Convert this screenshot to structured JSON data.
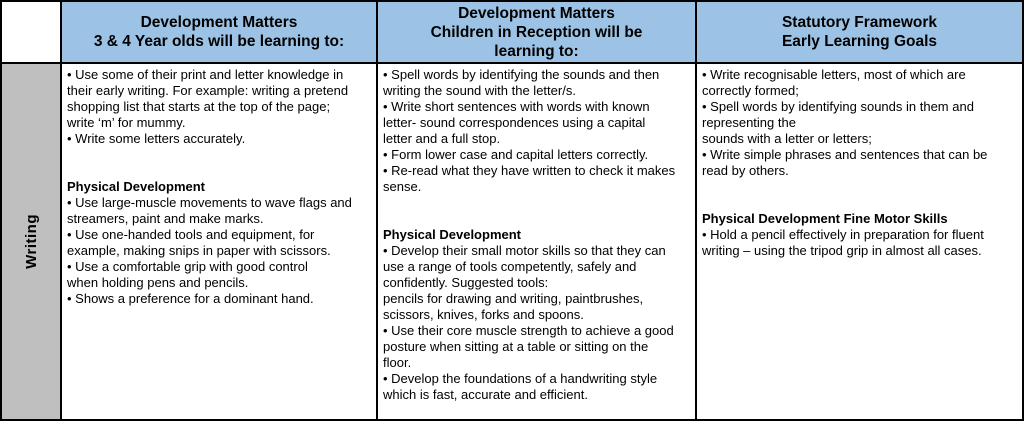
{
  "table": {
    "title_context": "Writing curriculum overview table",
    "header": {
      "col_3_4": "Development Matters\n3 & 4 Year olds will be learning to:",
      "col_reception": "Development Matters\nChildren in Reception will be\nlearning to:",
      "col_elg": "Statutory Framework\nEarly Learning Goals"
    },
    "row_label": "Writing",
    "colors": {
      "header_bg": "#9cc3e5",
      "row_label_bg": "#bfbfbf",
      "border": "#000000",
      "body_bg": "#ffffff"
    },
    "columns": [
      {
        "name": "3-4-year-olds",
        "blocks": [
          {
            "type": "p",
            "text": "• Use some of their print and letter knowledge in\ntheir early writing. For example: writing a pretend\nshopping list that starts at the top of the page;\nwrite ‘m’ for mummy."
          },
          {
            "type": "p",
            "text": "• Write some letters accurately."
          },
          {
            "type": "gap"
          },
          {
            "type": "h",
            "text": "Physical Development"
          },
          {
            "type": "p",
            "text": "• Use large-muscle movements to wave flags and\nstreamers, paint and make marks."
          },
          {
            "type": "p",
            "text": "• Use one-handed tools and equipment, for\nexample, making snips in paper with scissors."
          },
          {
            "type": "p",
            "text": "• Use a comfortable grip with good control\nwhen holding pens and pencils."
          },
          {
            "type": "p",
            "text": "• Shows a preference for a dominant hand."
          }
        ]
      },
      {
        "name": "reception",
        "blocks": [
          {
            "type": "p",
            "text": "• Spell words by identifying the sounds and then\nwriting the sound with the letter/s."
          },
          {
            "type": "p",
            "text": "• Write short sentences with words with known\nletter- sound correspondences using a capital\nletter and a full stop."
          },
          {
            "type": "p",
            "text": "• Form lower case and capital letters correctly."
          },
          {
            "type": "p",
            "text": "• Re-read what they have written to check it makes\nsense."
          },
          {
            "type": "gap"
          },
          {
            "type": "h",
            "text": "Physical Development"
          },
          {
            "type": "p",
            "text": "• Develop their small motor skills so that they can\nuse a range of tools competently, safely and\nconfidently. Suggested tools:\npencils for drawing and writing, paintbrushes,\nscissors, knives, forks and spoons."
          },
          {
            "type": "p",
            "text": "• Use their core muscle strength to achieve a good\nposture when sitting at a table or sitting on the\nfloor."
          },
          {
            "type": "p",
            "text": "• Develop the foundations of a handwriting style\nwhich is fast, accurate and efficient."
          }
        ]
      },
      {
        "name": "early-learning-goals",
        "blocks": [
          {
            "type": "p",
            "text": "• Write recognisable letters, most of which are\ncorrectly formed;"
          },
          {
            "type": "p",
            "text": "• Spell words by identifying sounds in them and\nrepresenting the\nsounds with a letter or letters;"
          },
          {
            "type": "p",
            "text": "• Write simple phrases and sentences that can be\nread by others."
          },
          {
            "type": "gap"
          },
          {
            "type": "h",
            "text": "Physical Development Fine Motor Skills"
          },
          {
            "type": "p",
            "text": "• Hold a pencil effectively in preparation for fluent\nwriting – using the tripod grip in almost all cases."
          }
        ]
      }
    ]
  }
}
